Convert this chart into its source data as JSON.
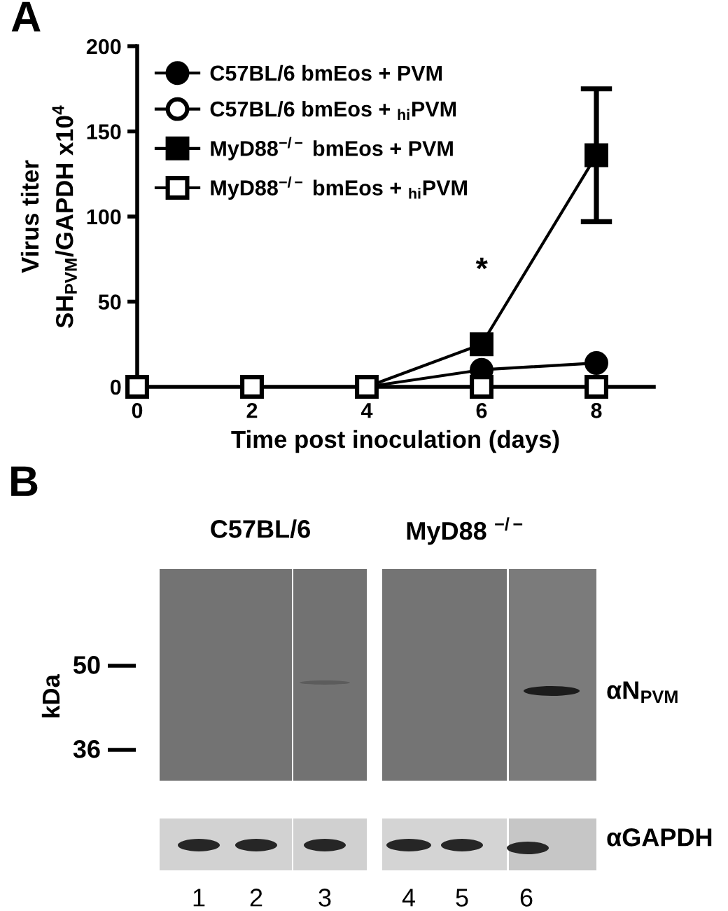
{
  "chart_data": {
    "type": "line",
    "title": "A",
    "xlabel": "Time post inoculation (days)",
    "ylabel": "Virus titer\nSH$_{PVM}$/GAPDH x10$^{4}$",
    "x": [
      0,
      2,
      4,
      6,
      8
    ],
    "xlim": [
      0,
      9
    ],
    "xticks": [
      0,
      2,
      4,
      6,
      8
    ],
    "ylim": [
      0,
      200
    ],
    "yticks": [
      0,
      50,
      100,
      150,
      200
    ],
    "legend": "top left",
    "series": [
      {
        "name": "C57BL/6 bmEos + PVM",
        "color": "#000000",
        "marker": "circle",
        "values": [
          null,
          null,
          0,
          10,
          14
        ]
      },
      {
        "name": "C57BL/6 bmEos + $_{hi}$PVM",
        "color": "#ffffff",
        "marker": "circle",
        "values": [
          null,
          null,
          null,
          null,
          null
        ]
      },
      {
        "name": "MyD88$^{−/−}$ bmEos + PVM",
        "color": "#000000",
        "marker": "square",
        "values": [
          null,
          null,
          0,
          25,
          136
        ],
        "errors": [
          null,
          null,
          null,
          null,
          39
        ]
      },
      {
        "name": "MyD88$^{−/−}$ bmEos + $_{hi}$PVM",
        "type": "scatter",
        "color": "#ffffff",
        "marker": "square",
        "values": [
          0,
          0,
          0,
          0,
          0
        ]
      }
    ],
    "annotations": [
      "*",
      "B",
      "C57BL/6",
      "MyD88 $^{−/−}$",
      "kDa",
      "50",
      "36",
      "αN$_{PVM}$",
      "αGAPDH",
      "1",
      "2",
      "3",
      "4",
      "5",
      "6"
    ]
  }
}
